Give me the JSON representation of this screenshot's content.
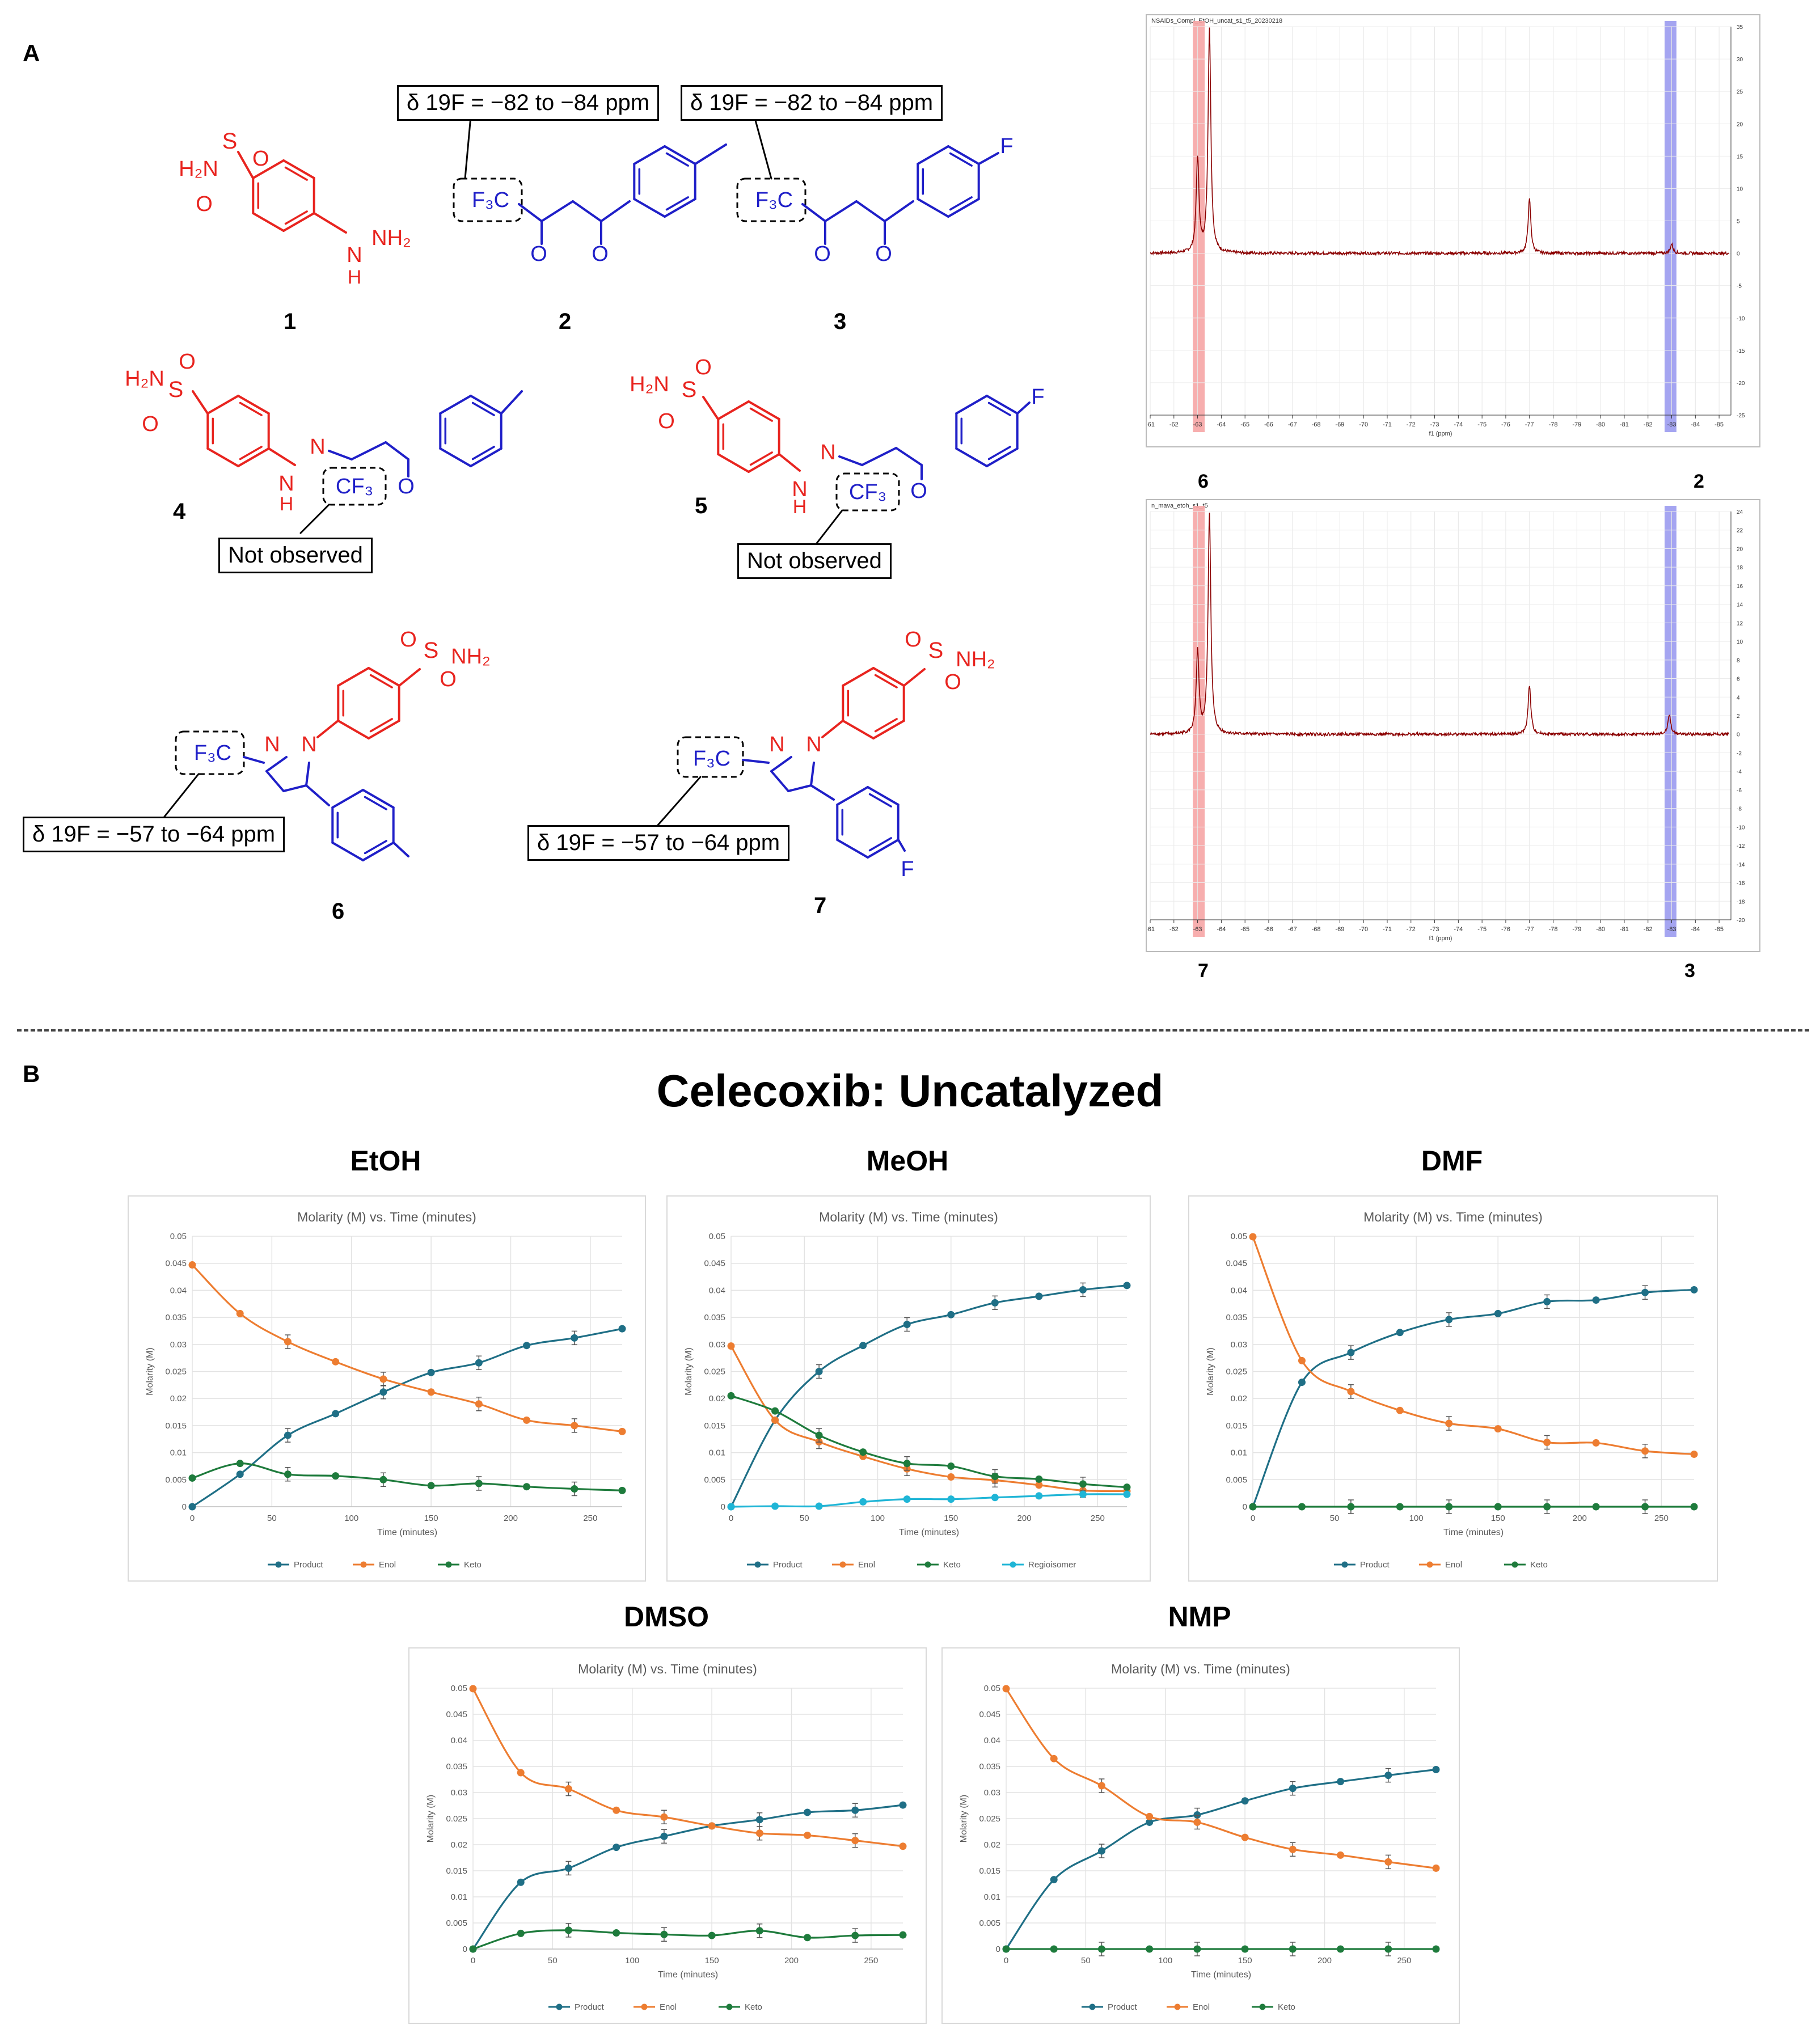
{
  "panelA": {
    "letter": "A",
    "compounds": [
      {
        "id": "1",
        "group": "SO2NH2",
        "group2": "NHNH2"
      },
      {
        "id": "2",
        "group": "F3C"
      },
      {
        "id": "3",
        "group": "F3C",
        "sub": "F"
      },
      {
        "id": "4",
        "group": "CF3"
      },
      {
        "id": "5",
        "group": "CF3",
        "sub": "F"
      },
      {
        "id": "6",
        "group": "F3C"
      },
      {
        "id": "7",
        "group": "F3C",
        "sub": "F"
      }
    ],
    "captions": {
      "shift_high": "δ 19F = −82 to −84 ppm",
      "shift_low": "δ 19F = −57 to −64 ppm",
      "not_observed": "Not observed"
    },
    "nmr": [
      {
        "name": "NSAIDs_Compl_EtOH_uncat_s1_t5_20230218",
        "left_label": "6",
        "right_label": "2",
        "xlabel": "f1 (ppm)",
        "xticks": [
          -61,
          -62,
          -63,
          -64,
          -65,
          -66,
          -67,
          -68,
          -69,
          -70,
          -71,
          -72,
          -73,
          -74,
          -75,
          -76,
          -77,
          -78,
          -79,
          -80,
          -81,
          -82,
          -83,
          -84,
          -85
        ],
        "yticks": [
          35,
          30,
          25,
          20,
          15,
          10,
          5,
          0,
          -5,
          -10,
          -15,
          -20,
          -25
        ],
        "peaks": [
          {
            "ppm": -63.0,
            "h": 0.42
          },
          {
            "ppm": -63.5,
            "h": 1.0
          },
          {
            "ppm": -77.0,
            "h": 0.24
          },
          {
            "ppm": -83.0,
            "h": 0.04
          }
        ]
      },
      {
        "name": "n_mava_etoh_s1_t5",
        "left_label": "7",
        "right_label": "3",
        "xlabel": "f1 (ppm)",
        "xticks": [
          -61,
          -62,
          -63,
          -64,
          -65,
          -66,
          -67,
          -68,
          -69,
          -70,
          -71,
          -72,
          -73,
          -74,
          -75,
          -76,
          -77,
          -78,
          -79,
          -80,
          -81,
          -82,
          -83,
          -84,
          -85
        ],
        "yticks": [
          24,
          22,
          20,
          18,
          16,
          14,
          12,
          10,
          8,
          6,
          4,
          2,
          0,
          -2,
          -4,
          -6,
          -8,
          -10,
          -12,
          -14,
          -16,
          -18,
          -20
        ],
        "peaks": [
          {
            "ppm": -63.0,
            "h": 0.37
          },
          {
            "ppm": -63.5,
            "h": 1.0
          },
          {
            "ppm": -77.0,
            "h": 0.22
          },
          {
            "ppm": -82.9,
            "h": 0.09
          }
        ]
      }
    ]
  },
  "panelB": {
    "letter": "B",
    "title": "Celecoxib: Uncatalyzed"
  },
  "colors": {
    "product": "#1f6f86",
    "enol": "#ed7d31",
    "keto": "#1e7b3c",
    "regioisomer": "#1fb5d6",
    "red": "#e8241f",
    "blue": "#1f1fc8",
    "nmr": "#8b0000"
  },
  "chart_data": [
    {
      "type": "line",
      "solvent": "EtOH",
      "title": "Molarity (M) vs. Time (minutes)",
      "xlabel": "Time (minutes)",
      "ylabel": "Molarity (M)",
      "xlim": [
        0,
        270
      ],
      "ylim": [
        0,
        0.05
      ],
      "xticks": [
        0,
        50,
        100,
        150,
        200,
        250
      ],
      "yticks": [
        0,
        0.005,
        0.01,
        0.015,
        0.02,
        0.025,
        0.03,
        0.035,
        0.04,
        0.045,
        0.05
      ],
      "x": [
        0,
        30,
        60,
        90,
        120,
        150,
        180,
        210,
        240,
        270
      ],
      "series": [
        {
          "name": "Product",
          "key": "product",
          "values": [
            0,
            0.006,
            0.0132,
            0.0172,
            0.0212,
            0.0248,
            0.0266,
            0.0298,
            0.0312,
            0.0329
          ]
        },
        {
          "name": "Enol",
          "key": "enol",
          "values": [
            0.0447,
            0.0357,
            0.0305,
            0.0268,
            0.0236,
            0.0212,
            0.019,
            0.016,
            0.015,
            0.0139
          ]
        },
        {
          "name": "Keto",
          "key": "keto",
          "values": [
            0.0053,
            0.008,
            0.006,
            0.0057,
            0.005,
            0.0039,
            0.0043,
            0.0037,
            0.0033,
            0.003
          ]
        }
      ]
    },
    {
      "type": "line",
      "solvent": "MeOH",
      "title": "Molarity (M) vs. Time (minutes)",
      "xlabel": "Time (minutes)",
      "ylabel": "Molarity (M)",
      "xlim": [
        0,
        270
      ],
      "ylim": [
        0,
        0.05
      ],
      "xticks": [
        0,
        50,
        100,
        150,
        200,
        250
      ],
      "yticks": [
        0,
        0.005,
        0.01,
        0.015,
        0.02,
        0.025,
        0.03,
        0.035,
        0.04,
        0.045,
        0.05
      ],
      "x": [
        0,
        30,
        60,
        90,
        120,
        150,
        180,
        210,
        240,
        270
      ],
      "series": [
        {
          "name": "Product",
          "key": "product",
          "values": [
            0,
            0.016,
            0.025,
            0.0298,
            0.0337,
            0.0355,
            0.0377,
            0.0389,
            0.0401,
            0.0409
          ]
        },
        {
          "name": "Enol",
          "key": "enol",
          "values": [
            0.0297,
            0.016,
            0.012,
            0.0093,
            0.007,
            0.0055,
            0.0049,
            0.004,
            0.003,
            0.0029
          ]
        },
        {
          "name": "Keto",
          "key": "keto",
          "values": [
            0.0205,
            0.0177,
            0.0132,
            0.0101,
            0.008,
            0.0075,
            0.0056,
            0.0051,
            0.0042,
            0.0036
          ]
        },
        {
          "name": "Regioisomer",
          "key": "regioisomer",
          "values": [
            0,
            0.0001,
            0.0001,
            0.0009,
            0.0014,
            0.0014,
            0.0017,
            0.002,
            0.0023,
            0.0023
          ]
        }
      ]
    },
    {
      "type": "line",
      "solvent": "DMF",
      "title": "Molarity (M) vs. Time (minutes)",
      "xlabel": "Time (minutes)",
      "ylabel": "Molarity (M)",
      "xlim": [
        0,
        270
      ],
      "ylim": [
        0,
        0.05
      ],
      "xticks": [
        0,
        50,
        100,
        150,
        200,
        250
      ],
      "yticks": [
        0,
        0.005,
        0.01,
        0.015,
        0.02,
        0.025,
        0.03,
        0.035,
        0.04,
        0.045,
        0.05
      ],
      "x": [
        0,
        30,
        60,
        90,
        120,
        150,
        180,
        210,
        240,
        270
      ],
      "series": [
        {
          "name": "Product",
          "key": "product",
          "values": [
            0,
            0.023,
            0.0285,
            0.0322,
            0.0346,
            0.0357,
            0.0379,
            0.0382,
            0.0396,
            0.0401
          ]
        },
        {
          "name": "Enol",
          "key": "enol",
          "values": [
            0.0499,
            0.027,
            0.0213,
            0.0178,
            0.0154,
            0.0144,
            0.0119,
            0.0118,
            0.0103,
            0.0097
          ]
        },
        {
          "name": "Keto",
          "key": "keto",
          "values": [
            0,
            0,
            0,
            0,
            0,
            0,
            0,
            0,
            0,
            0
          ]
        }
      ]
    },
    {
      "type": "line",
      "solvent": "DMSO",
      "title": "Molarity (M) vs. Time (minutes)",
      "xlabel": "Time (minutes)",
      "ylabel": "Molarity (M)",
      "xlim": [
        0,
        270
      ],
      "ylim": [
        0,
        0.05
      ],
      "xticks": [
        0,
        50,
        100,
        150,
        200,
        250
      ],
      "yticks": [
        0,
        0.005,
        0.01,
        0.015,
        0.02,
        0.025,
        0.03,
        0.035,
        0.04,
        0.045,
        0.05
      ],
      "x": [
        0,
        30,
        60,
        90,
        120,
        150,
        180,
        210,
        240,
        270
      ],
      "series": [
        {
          "name": "Product",
          "key": "product",
          "values": [
            0,
            0.0128,
            0.0155,
            0.0195,
            0.0216,
            0.0236,
            0.0248,
            0.0262,
            0.0266,
            0.0276
          ]
        },
        {
          "name": "Enol",
          "key": "enol",
          "values": [
            0.0499,
            0.0338,
            0.0307,
            0.0266,
            0.0253,
            0.0236,
            0.0222,
            0.0218,
            0.0208,
            0.0197
          ]
        },
        {
          "name": "Keto",
          "key": "keto",
          "values": [
            0,
            0.003,
            0.0036,
            0.0031,
            0.0028,
            0.0026,
            0.0035,
            0.0022,
            0.0026,
            0.0027
          ]
        }
      ]
    },
    {
      "type": "line",
      "solvent": "NMP",
      "title": "Molarity (M) vs. Time (minutes)",
      "xlabel": "Time (minutes)",
      "ylabel": "Molarity (M)",
      "xlim": [
        0,
        270
      ],
      "ylim": [
        0,
        0.05
      ],
      "xticks": [
        0,
        50,
        100,
        150,
        200,
        250
      ],
      "yticks": [
        0,
        0.005,
        0.01,
        0.015,
        0.02,
        0.025,
        0.03,
        0.035,
        0.04,
        0.045,
        0.05
      ],
      "x": [
        0,
        30,
        60,
        90,
        120,
        150,
        180,
        210,
        240,
        270
      ],
      "series": [
        {
          "name": "Product",
          "key": "product",
          "values": [
            0,
            0.0133,
            0.0188,
            0.0243,
            0.0257,
            0.0284,
            0.0308,
            0.0321,
            0.0333,
            0.0344
          ]
        },
        {
          "name": "Enol",
          "key": "enol",
          "values": [
            0.0499,
            0.0365,
            0.0313,
            0.0254,
            0.0243,
            0.0214,
            0.0191,
            0.018,
            0.0167,
            0.0155
          ]
        },
        {
          "name": "Keto",
          "key": "keto",
          "values": [
            0,
            0,
            0,
            0,
            0,
            0,
            0,
            0,
            0,
            0
          ]
        }
      ]
    }
  ]
}
